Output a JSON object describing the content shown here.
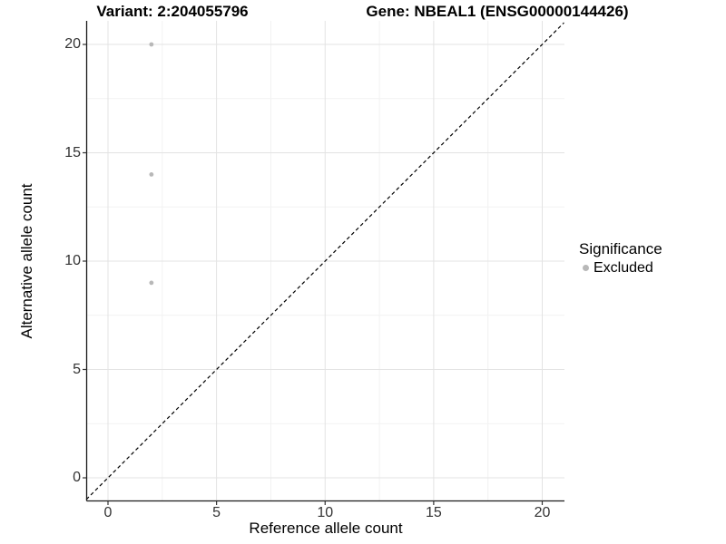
{
  "page": {
    "background": "#ffffff"
  },
  "header": {
    "variant_title": "Variant: 2:204055796",
    "gene_title": "Gene: NBEAL1 (ENSG00000144426)"
  },
  "axes": {
    "x": {
      "label": "Reference allele count",
      "ticks": [
        "0",
        "5",
        "10",
        "15",
        "20"
      ],
      "tick_values": [
        0,
        5,
        10,
        15,
        20
      ],
      "minor_tick_values": [
        2.5,
        7.5,
        12.5,
        17.5
      ]
    },
    "y": {
      "label": "Alternative allele count",
      "ticks": [
        "0",
        "5",
        "10",
        "15",
        "20"
      ],
      "tick_values": [
        0,
        5,
        10,
        15,
        20
      ],
      "minor_tick_values": [
        2.5,
        7.5,
        12.5,
        17.5
      ]
    }
  },
  "legend": {
    "title": "Significance",
    "items": [
      {
        "label": "Excluded",
        "color": "#b8b8b8"
      }
    ]
  },
  "colors": {
    "grid_major": "#e3e3e3",
    "grid_minor": "#f2f2f2",
    "axis_line": "#1a1a1a",
    "tick_mark": "#333333",
    "reference_line": "#000000",
    "point": "#b8b8b8"
  },
  "chart_data": {
    "type": "scatter",
    "title": "Variant: 2:204055796 | Gene: NBEAL1 (ENSG00000144426)",
    "xlabel": "Reference allele count",
    "ylabel": "Alternative allele count",
    "xlim": [
      0,
      20
    ],
    "ylim": [
      0,
      20
    ],
    "grid": true,
    "legend_position": "right",
    "legend_title": "Significance",
    "series": [
      {
        "name": "Excluded",
        "color": "#b8b8b8",
        "points": [
          {
            "x": 2,
            "y": 20
          },
          {
            "x": 2,
            "y": 14
          },
          {
            "x": 2,
            "y": 9
          }
        ]
      }
    ],
    "reference_line": {
      "type": "identity (y = x)",
      "style": "dashed",
      "color": "#000000",
      "from": [
        -1,
        -1
      ],
      "to": [
        21,
        21
      ]
    }
  }
}
